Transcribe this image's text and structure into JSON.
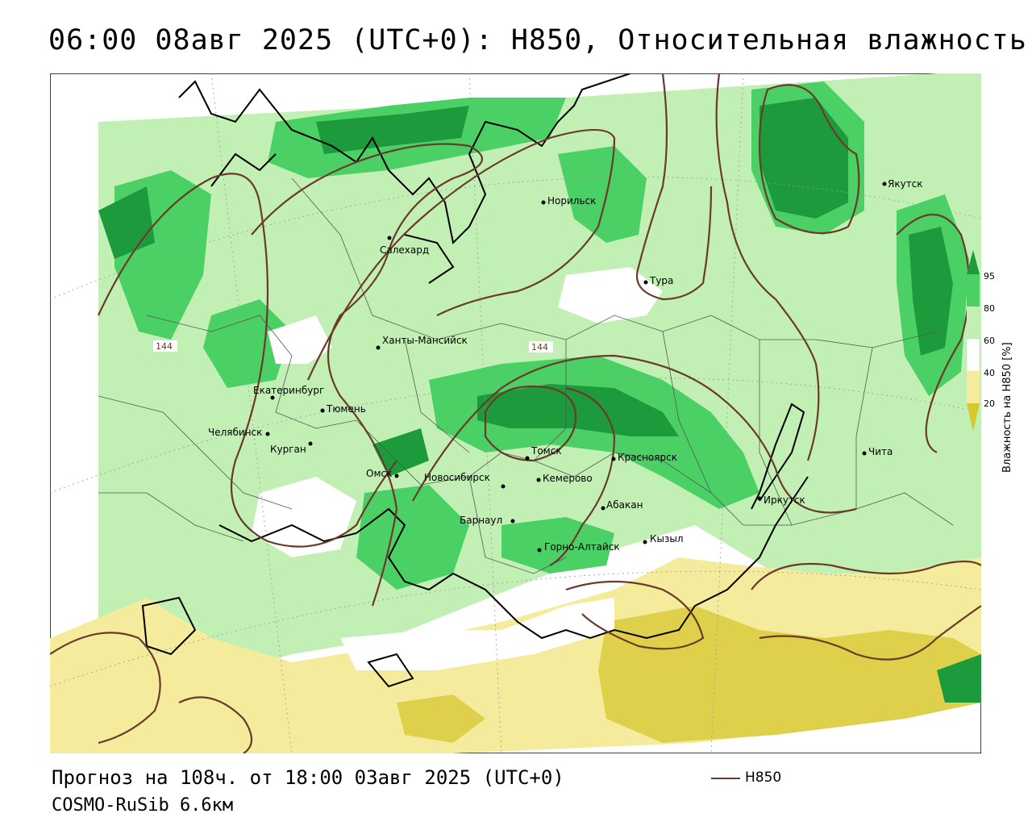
{
  "title": "06:00 08авг 2025 (UTC+0): H850, Относительная влажность",
  "footer": {
    "forecast": "Прогноз на 108ч. от 18:00 03авг 2025 (UTC+0)",
    "model": "COSMO-RuSib 6.6км"
  },
  "legend": {
    "contour_label": "H850",
    "contour_color": "#6b3a2a"
  },
  "colorbar": {
    "title": "Влажность на H850 [%]",
    "ticks": [
      "95",
      "80",
      "60",
      "40",
      "20"
    ],
    "colors": {
      "very_dry": "#d8c830",
      "dry": "#f4ec9c",
      "neutral": "#ffffff",
      "moist": "#c2f0b4",
      "wet": "#4bd066",
      "very_wet": "#1d9a3c"
    }
  },
  "isolines": {
    "label_left": "144",
    "label_center": "144"
  },
  "cities": [
    {
      "name": "Якутск"
    },
    {
      "name": "Норильск"
    },
    {
      "name": "Салехард"
    },
    {
      "name": "Тура"
    },
    {
      "name": "Ханты-Мансийск"
    },
    {
      "name": "Екатеринбург"
    },
    {
      "name": "Тюмень"
    },
    {
      "name": "Челябинск"
    },
    {
      "name": "Курган"
    },
    {
      "name": "Омск"
    },
    {
      "name": "Новосибирск"
    },
    {
      "name": "Томск"
    },
    {
      "name": "Кемерово"
    },
    {
      "name": "Красноярск"
    },
    {
      "name": "Абакан"
    },
    {
      "name": "Барнаул"
    },
    {
      "name": "Горно-Алтайск"
    },
    {
      "name": "Кызыл"
    },
    {
      "name": "Иркутск"
    },
    {
      "name": "Чита"
    }
  ]
}
